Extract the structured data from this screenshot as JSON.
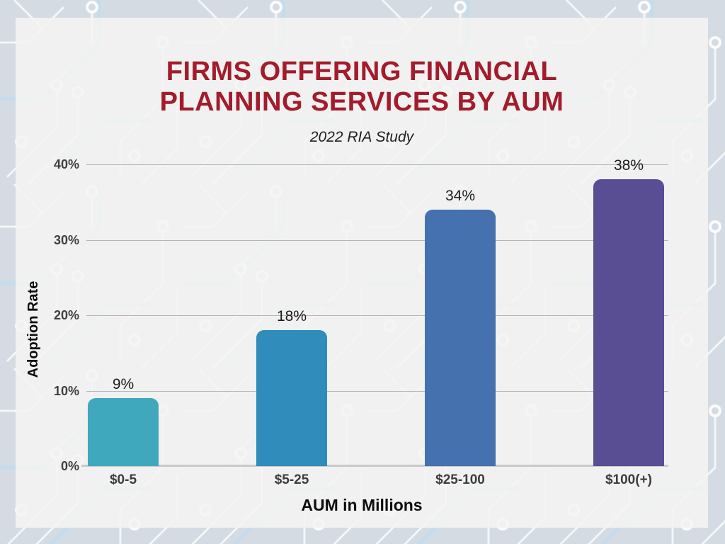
{
  "chart_data": {
    "type": "bar",
    "title": "FIRMS OFFERING FINANCIAL PLANNING SERVICES BY AUM",
    "title_lines": [
      "FIRMS OFFERING FINANCIAL",
      "PLANNING SERVICES BY AUM"
    ],
    "subtitle": "2022 RIA Study",
    "xlabel": "AUM in Millions",
    "ylabel": "Adoption Rate",
    "categories": [
      "$0-5",
      "$5-25",
      "$25-100",
      "$100(+)"
    ],
    "values": [
      9,
      18,
      34,
      38
    ],
    "value_labels": [
      "9%",
      "18%",
      "34%",
      "38%"
    ],
    "bar_colors": [
      "#3fa8bc",
      "#2f8cbb",
      "#4571af",
      "#594e94"
    ],
    "ylim": [
      0,
      40
    ],
    "yticks": [
      0,
      10,
      20,
      30,
      40
    ],
    "ytick_labels": [
      "0%",
      "10%",
      "20%",
      "30%",
      "40%"
    ],
    "grid": "horizontal",
    "legend": "none",
    "colors": {
      "title_text": "#a21c2c",
      "subtitle_text": "#1f1f1f",
      "gridline": "#b6b6b6",
      "axis_line": "#c9c9c9",
      "tick_text": "#3f3f3f",
      "value_text": "#1b1b1b",
      "background_base": "#d4dbe2",
      "panel_overlay": "#f4f3f1"
    }
  }
}
